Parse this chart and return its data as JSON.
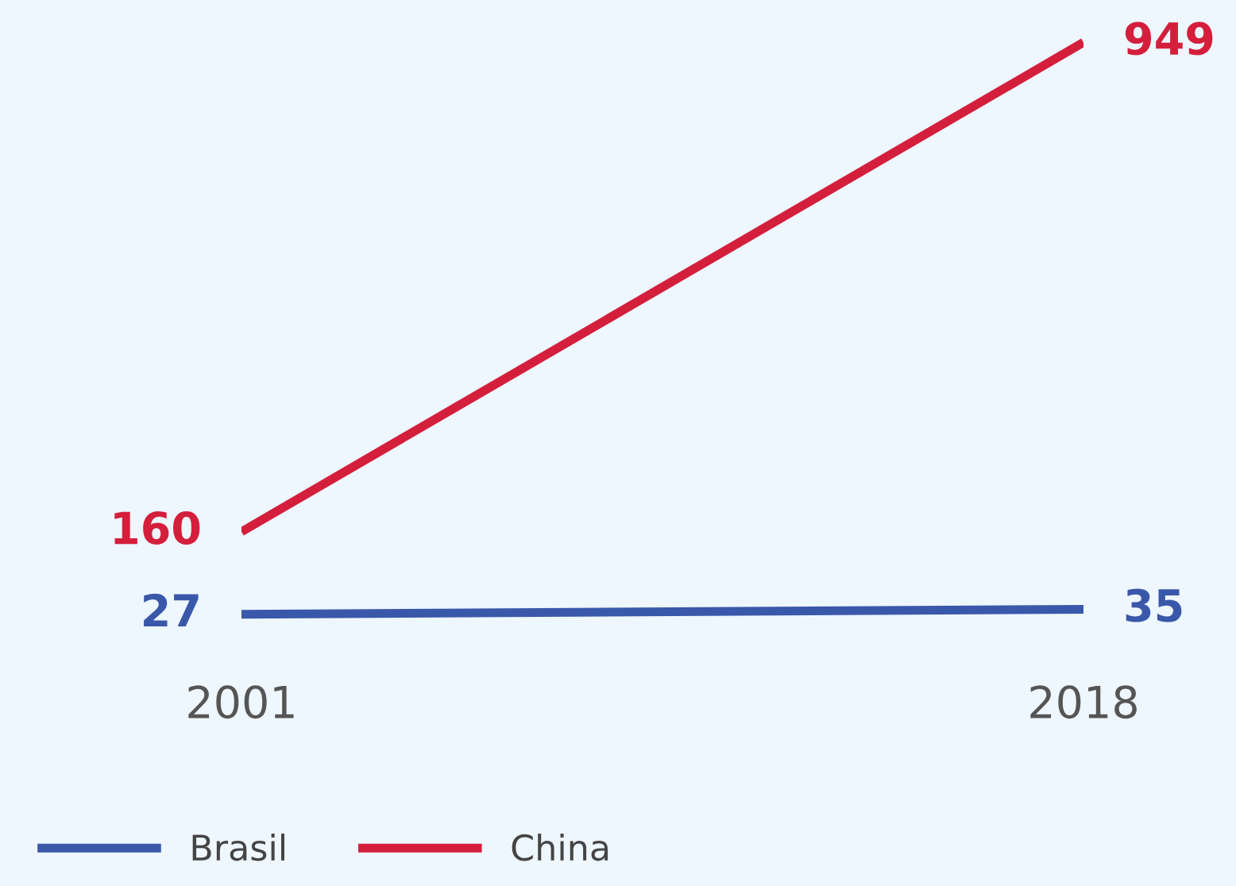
{
  "chart_data": {
    "type": "line",
    "x": [
      2001,
      2018
    ],
    "xlim": [
      2001,
      2018
    ],
    "xticks": [
      2001,
      2018
    ],
    "series": [
      {
        "name": "Brasil",
        "color": "#3a58aa",
        "values": [
          27,
          35
        ]
      },
      {
        "name": "China",
        "color": "#d41f3c",
        "values": [
          160,
          949
        ]
      }
    ],
    "data_labels": true,
    "legend": "bottom left",
    "tick_labels": "x",
    "grid": false,
    "marker": "none",
    "line_style": "solid"
  }
}
